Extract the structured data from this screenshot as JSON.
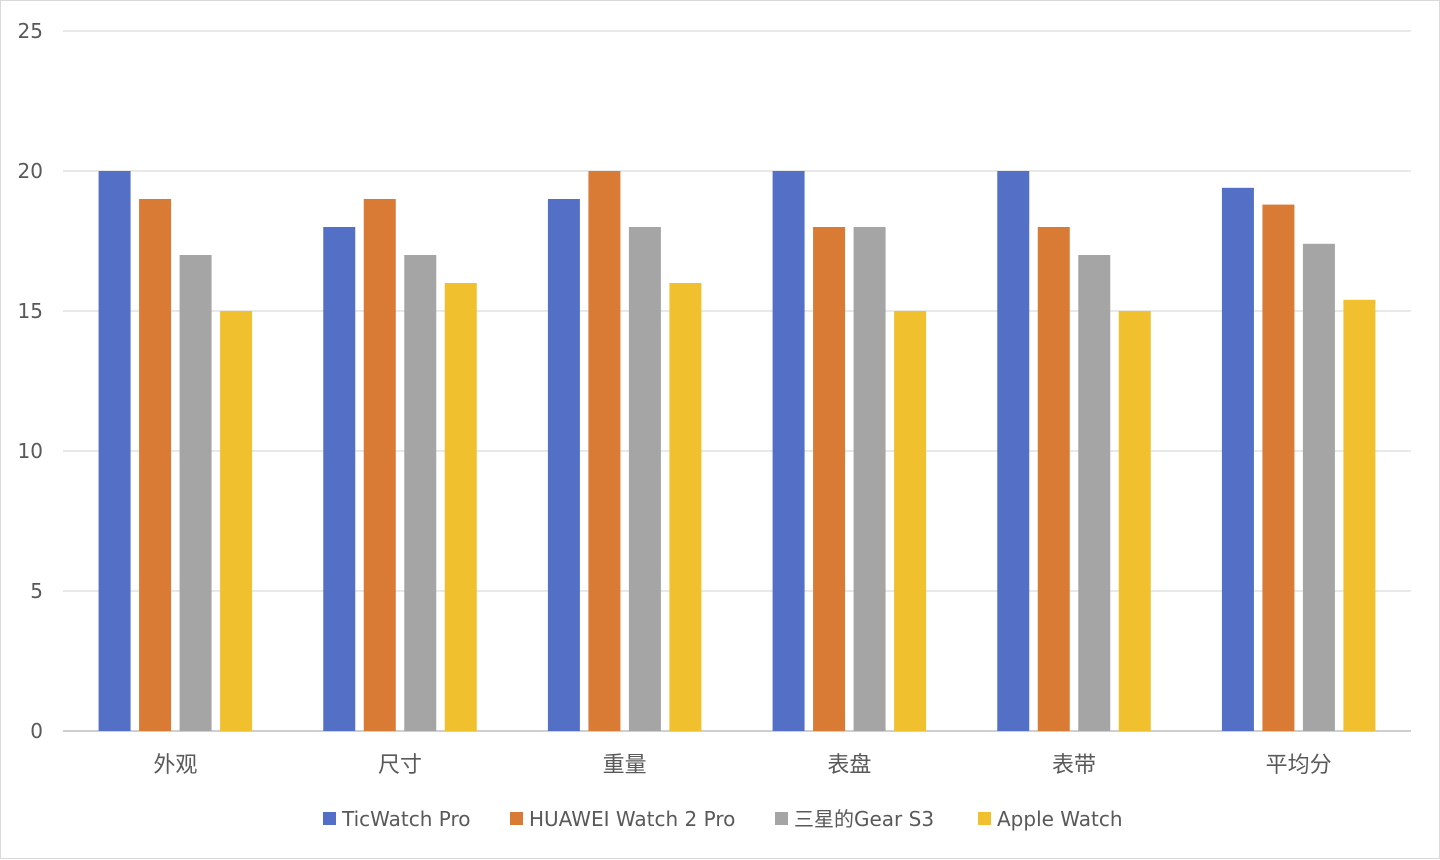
{
  "chart_data": {
    "type": "bar",
    "categories": [
      "外观",
      "尺寸",
      "重量",
      "表盘",
      "表带",
      "平均分"
    ],
    "series": [
      {
        "name": "TicWatch Pro",
        "color": "#5470c6",
        "values": [
          20,
          18,
          19,
          20,
          20,
          19.4
        ]
      },
      {
        "name": "HUAWEI Watch 2 Pro",
        "color": "#d97a35",
        "values": [
          19,
          19,
          20,
          18,
          18,
          18.8
        ]
      },
      {
        "name": "三星的Gear S3",
        "color": "#a5a5a5",
        "values": [
          17,
          17,
          18,
          18,
          17,
          17.4
        ]
      },
      {
        "name": "Apple Watch",
        "color": "#f0c02f",
        "values": [
          15,
          16,
          16,
          15,
          15,
          15.4
        ]
      }
    ],
    "yticks": [
      "0",
      "5",
      "10",
      "15",
      "20",
      "25"
    ],
    "ylim": [
      0,
      25
    ],
    "grid": true,
    "legend_position": "bottom",
    "title": "",
    "xlabel": "",
    "ylabel": ""
  }
}
